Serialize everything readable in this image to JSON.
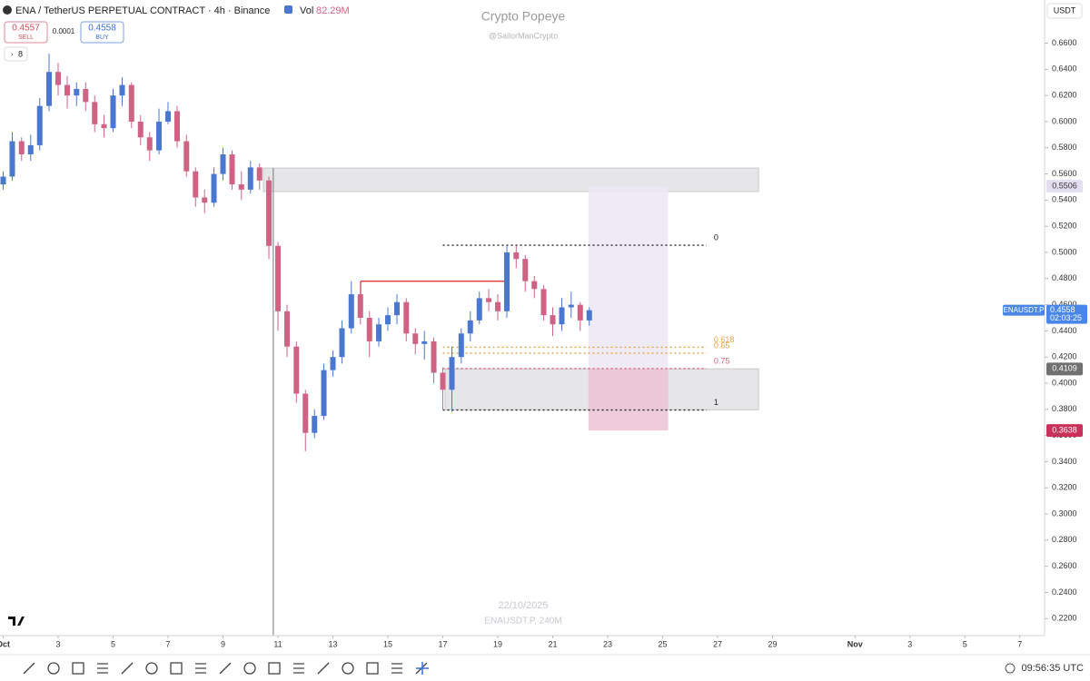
{
  "header": {
    "symbol": "ENA / TetherUS PERPETUAL CONTRACT · 4h · Binance",
    "vol_label": "Vol",
    "vol_value": "82.29M",
    "sell_price": "0.4557",
    "sell_label": "SELL",
    "spread": "0.0001",
    "buy_price": "0.4558",
    "buy_label": "BUY",
    "indicator_count": "8",
    "currency": "USDT"
  },
  "watermark": {
    "author": "Crypto Popeye",
    "handle": "@SailorManCrypto",
    "date": "22/10/2025",
    "symbol_interval": "ENAUSDT.P, 240M"
  },
  "status": {
    "clock": "09:56:35 UTC"
  },
  "chart_data": {
    "type": "candlestick",
    "x": [
      0,
      0.33,
      0.67,
      1,
      1.33,
      1.67,
      2,
      2.33,
      2.67,
      3,
      3.33,
      3.67,
      4,
      4.33,
      4.67,
      5,
      5.33,
      5.67,
      6,
      6.33,
      6.67,
      7,
      7.33,
      7.67,
      8,
      8.33,
      8.67,
      9,
      9.33,
      9.67,
      10,
      10.33,
      10.67,
      11,
      11.33,
      11.67,
      12,
      12.33,
      12.67,
      13,
      13.33,
      13.67,
      14,
      14.33,
      14.67,
      15,
      15.33,
      15.67,
      16,
      16.33,
      16.67,
      17,
      17.33,
      17.67,
      18,
      18.33,
      18.67,
      19,
      19.33,
      19.67,
      20,
      20.33,
      20.67,
      21,
      21.33
    ],
    "open": [
      0.552,
      0.558,
      0.585,
      0.575,
      0.582,
      0.612,
      0.638,
      0.628,
      0.62,
      0.625,
      0.615,
      0.598,
      0.595,
      0.62,
      0.628,
      0.6,
      0.588,
      0.578,
      0.6,
      0.608,
      0.585,
      0.562,
      0.542,
      0.538,
      0.56,
      0.575,
      0.552,
      0.548,
      0.565,
      0.555,
      0.505,
      0.455,
      0.428,
      0.392,
      0.362,
      0.375,
      0.41,
      0.42,
      0.442,
      0.468,
      0.45,
      0.432,
      0.445,
      0.452,
      0.462,
      0.438,
      0.43,
      0.432,
      0.408,
      0.395,
      0.42,
      0.438,
      0.448,
      0.465,
      0.462,
      0.455,
      0.5,
      0.495,
      0.478,
      0.472,
      0.452,
      0.445,
      0.458,
      0.46,
      0.448
    ],
    "high": [
      0.562,
      0.592,
      0.588,
      0.59,
      0.618,
      0.652,
      0.645,
      0.635,
      0.63,
      0.63,
      0.62,
      0.605,
      0.625,
      0.634,
      0.63,
      0.605,
      0.592,
      0.61,
      0.615,
      0.612,
      0.59,
      0.565,
      0.548,
      0.565,
      0.58,
      0.578,
      0.562,
      0.57,
      0.568,
      0.558,
      0.508,
      0.46,
      0.432,
      0.395,
      0.38,
      0.415,
      0.425,
      0.448,
      0.478,
      0.476,
      0.455,
      0.45,
      0.458,
      0.468,
      0.465,
      0.442,
      0.44,
      0.435,
      0.412,
      0.428,
      0.442,
      0.455,
      0.47,
      0.472,
      0.468,
      0.505,
      0.505,
      0.498,
      0.482,
      0.475,
      0.458,
      0.465,
      0.47,
      0.462,
      0.458
    ],
    "low": [
      0.548,
      0.555,
      0.57,
      0.57,
      0.578,
      0.608,
      0.62,
      0.61,
      0.612,
      0.608,
      0.592,
      0.588,
      0.592,
      0.612,
      0.595,
      0.582,
      0.57,
      0.575,
      0.598,
      0.58,
      0.558,
      0.535,
      0.53,
      0.535,
      0.555,
      0.548,
      0.54,
      0.545,
      0.548,
      0.495,
      0.44,
      0.42,
      0.385,
      0.348,
      0.358,
      0.372,
      0.405,
      0.415,
      0.438,
      0.445,
      0.42,
      0.428,
      0.44,
      0.445,
      0.432,
      0.422,
      0.418,
      0.4,
      0.38,
      0.378,
      0.415,
      0.432,
      0.445,
      0.455,
      0.448,
      0.45,
      0.488,
      0.47,
      0.465,
      0.448,
      0.436,
      0.44,
      0.45,
      0.44,
      0.444
    ],
    "close": [
      0.558,
      0.585,
      0.575,
      0.582,
      0.612,
      0.638,
      0.628,
      0.62,
      0.625,
      0.615,
      0.598,
      0.595,
      0.62,
      0.628,
      0.6,
      0.588,
      0.578,
      0.6,
      0.608,
      0.585,
      0.562,
      0.542,
      0.538,
      0.56,
      0.575,
      0.552,
      0.548,
      0.565,
      0.555,
      0.505,
      0.455,
      0.428,
      0.392,
      0.362,
      0.375,
      0.41,
      0.42,
      0.442,
      0.468,
      0.45,
      0.432,
      0.445,
      0.452,
      0.462,
      0.438,
      0.43,
      0.432,
      0.408,
      0.395,
      0.42,
      0.438,
      0.448,
      0.465,
      0.462,
      0.455,
      0.5,
      0.495,
      0.478,
      0.472,
      0.452,
      0.445,
      0.458,
      0.46,
      0.448,
      0.4558
    ],
    "up_color": "#4a78d0",
    "down_color": "#cf6383",
    "xlim": [
      -0.116,
      37.9
    ],
    "xticks": [
      {
        "value": 0,
        "label": "Oct"
      },
      {
        "value": 2,
        "label": "3"
      },
      {
        "value": 4,
        "label": "5"
      },
      {
        "value": 6,
        "label": "7"
      },
      {
        "value": 8,
        "label": "9"
      },
      {
        "value": 10,
        "label": "11"
      },
      {
        "value": 12,
        "label": "13"
      },
      {
        "value": 14,
        "label": "15"
      },
      {
        "value": 16,
        "label": "17"
      },
      {
        "value": 18,
        "label": "19"
      },
      {
        "value": 20,
        "label": "21"
      },
      {
        "value": 22,
        "label": "23"
      },
      {
        "value": 24,
        "label": "25"
      },
      {
        "value": 26,
        "label": "27"
      },
      {
        "value": 28,
        "label": "29"
      },
      {
        "value": 31,
        "label": "Nov"
      },
      {
        "value": 33,
        "label": "3"
      },
      {
        "value": 35,
        "label": "5"
      },
      {
        "value": 37,
        "label": "7"
      }
    ],
    "ylim": [
      0.207,
      0.693
    ],
    "yticks": [
      {
        "value": 0.22,
        "label": "0.2200"
      },
      {
        "value": 0.24,
        "label": "0.2400"
      },
      {
        "value": 0.26,
        "label": "0.2600"
      },
      {
        "value": 0.28,
        "label": "0.2800"
      },
      {
        "value": 0.3,
        "label": "0.3000"
      },
      {
        "value": 0.32,
        "label": "0.3200"
      },
      {
        "value": 0.34,
        "label": "0.3400"
      },
      {
        "value": 0.36,
        "label": "0.3600"
      },
      {
        "value": 0.38,
        "label": "0.3800"
      },
      {
        "value": 0.4,
        "label": "0.4000"
      },
      {
        "value": 0.42,
        "label": "0.4200"
      },
      {
        "value": 0.44,
        "label": "0.4400"
      },
      {
        "value": 0.46,
        "label": "0.4600"
      },
      {
        "value": 0.48,
        "label": "0.4800"
      },
      {
        "value": 0.5,
        "label": "0.5000"
      },
      {
        "value": 0.52,
        "label": "0.5200"
      },
      {
        "value": 0.54,
        "label": "0.5400"
      },
      {
        "value": 0.56,
        "label": "0.5600"
      },
      {
        "value": 0.58,
        "label": "0.5800"
      },
      {
        "value": 0.6,
        "label": "0.6000"
      },
      {
        "value": 0.62,
        "label": "0.6200"
      },
      {
        "value": 0.64,
        "label": "0.6400"
      },
      {
        "value": 0.66,
        "label": "0.6600"
      }
    ],
    "symbol_label": "ENAUSDT.P",
    "countdown": "02:03:25",
    "zones": [
      {
        "top": 0.5645,
        "bottom": 0.5465,
        "t_start": 9.47,
        "t_end": 27.49,
        "color": "#e2e1e4"
      },
      {
        "top": 0.411,
        "bottom": 0.3797,
        "t_start": 16.08,
        "t_end": 27.49,
        "color": "#e2e1e4"
      }
    ],
    "fib": {
      "t_start": 16.0,
      "t_end": 25.6,
      "levels": [
        {
          "level": 0,
          "price": 0.5055,
          "color": "#222222"
        },
        {
          "level": 0.618,
          "price": 0.4275,
          "color": "#e6a23c"
        },
        {
          "level": 0.65,
          "price": 0.423,
          "color": "#e6a23c"
        },
        {
          "level": 0.75,
          "price": 0.4112,
          "color": "#d9667a"
        },
        {
          "level": 1,
          "price": 0.3795,
          "color": "#222222"
        }
      ]
    },
    "position": {
      "t_start": 21.3,
      "t_end": 24.2,
      "target": 0.5506,
      "entry": 0.4109,
      "stop": 0.3638,
      "target_color": "#ebe7f4",
      "stop_color": "#ebc3d3"
    },
    "hline": {
      "price": 0.478,
      "low": 0.465,
      "t_start": 13.01,
      "t_end": 18.33,
      "color": "#e0393e"
    },
    "vline": {
      "t": 9.83,
      "top": 0.5645
    }
  }
}
